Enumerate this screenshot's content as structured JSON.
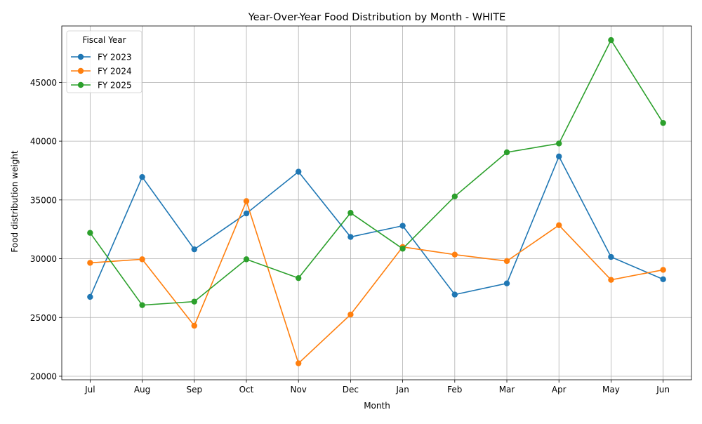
{
  "chart_data": {
    "type": "line",
    "title": "Year-Over-Year Food Distribution by Month - WHITE",
    "xlabel": "Month",
    "ylabel": "Food distribution weight",
    "categories": [
      "Jul",
      "Aug",
      "Sep",
      "Oct",
      "Nov",
      "Dec",
      "Jan",
      "Feb",
      "Mar",
      "Apr",
      "May",
      "Jun"
    ],
    "ylim": [
      19700,
      49800
    ],
    "yticks": [
      20000,
      25000,
      30000,
      35000,
      40000,
      45000
    ],
    "grid": true,
    "legend": {
      "title": "Fiscal Year",
      "position": "upper-left"
    },
    "series": [
      {
        "name": "FY 2023",
        "color": "#1f77b4",
        "values": [
          26750,
          36950,
          30800,
          33850,
          37400,
          31850,
          32800,
          26950,
          27900,
          38700,
          30150,
          28250
        ]
      },
      {
        "name": "FY 2024",
        "color": "#ff7f0e",
        "values": [
          29650,
          29950,
          24300,
          34900,
          21100,
          25250,
          31000,
          30350,
          29800,
          32850,
          28200,
          29050
        ]
      },
      {
        "name": "FY 2025",
        "color": "#2ca02c",
        "values": [
          32200,
          26050,
          26350,
          29950,
          28350,
          33900,
          30850,
          35300,
          39050,
          39800,
          48600,
          41550
        ]
      }
    ]
  }
}
